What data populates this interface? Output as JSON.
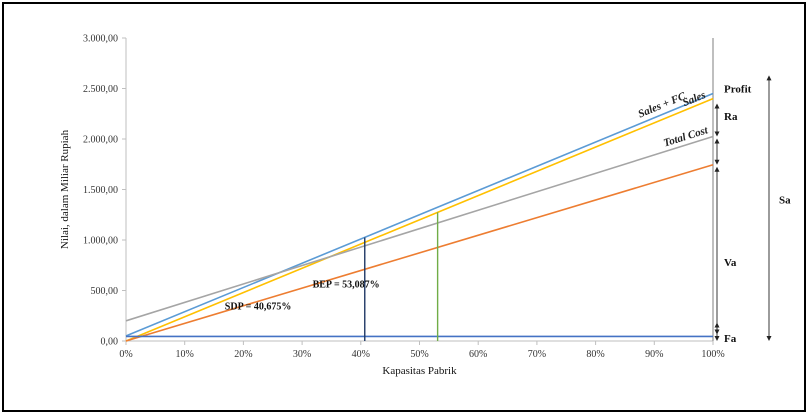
{
  "chart_data": {
    "type": "line",
    "title": "",
    "xlabel": "Kapasitas Pabrik",
    "ylabel": "Nilai, dalam Miliar Rupiah",
    "x": [
      0,
      100
    ],
    "x_ticks": [
      "0%",
      "10%",
      "20%",
      "30%",
      "40%",
      "50%",
      "60%",
      "70%",
      "80%",
      "90%",
      "100%"
    ],
    "y_ticks": [
      "0,00",
      "500,00",
      "1.000,00",
      "1.500,00",
      "2.000,00",
      "2.500,00",
      "3.000,00"
    ],
    "xlim": [
      0,
      100
    ],
    "ylim": [
      0,
      3000
    ],
    "grid": false,
    "series": [
      {
        "name": "Sales + FC",
        "color": "#5b9bd5",
        "values": [
          50,
          2450
        ]
      },
      {
        "name": "Sales",
        "color": "#ffc000",
        "values": [
          0,
          2400
        ]
      },
      {
        "name": "Total Cost",
        "color": "#a5a5a5",
        "values": [
          200,
          2025
        ]
      },
      {
        "name": "",
        "color": "#ed7d31",
        "values": [
          0,
          1745
        ]
      },
      {
        "name": "",
        "color": "#4472c4",
        "values": [
          45,
          45
        ]
      }
    ],
    "vlines": [
      {
        "x": 40.675,
        "y": 1025,
        "color": "#1f3864"
      },
      {
        "x": 53.087,
        "y": 1275,
        "color": "#70ad47"
      }
    ],
    "annotations": [
      {
        "text": "SDP = 40,675%",
        "x": 22.5,
        "y": 310
      },
      {
        "text": "BEP = 53,087%",
        "x": 37.5,
        "y": 530
      }
    ],
    "right_labels": [
      {
        "text": "Profit",
        "y": 2500
      },
      {
        "text": "Ra",
        "y": 2230
      },
      {
        "text": "Va",
        "y": 780
      },
      {
        "text": "Fa",
        "y": 30
      },
      {
        "text": "Sa",
        "y": 1400
      }
    ]
  }
}
